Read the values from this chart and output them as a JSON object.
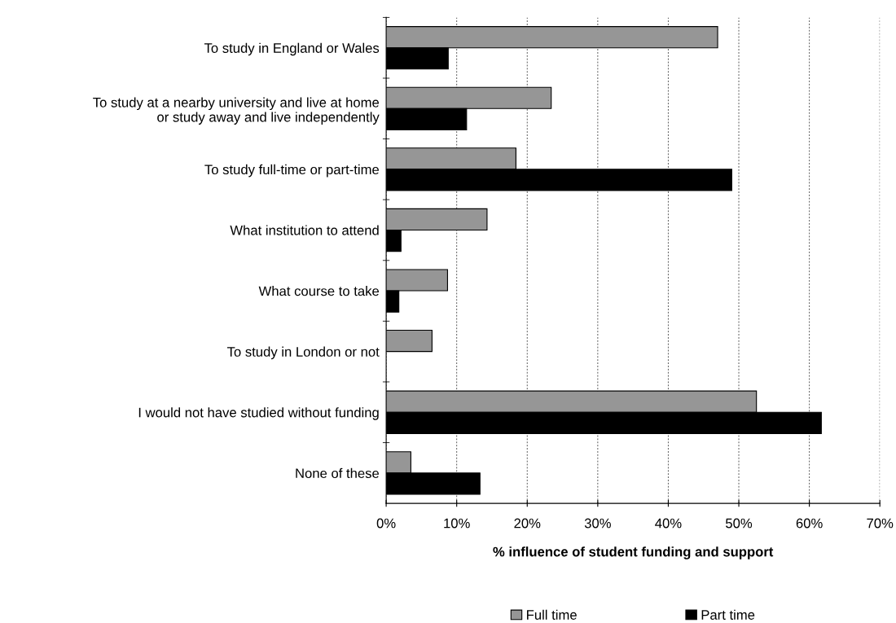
{
  "chart_data": {
    "type": "bar",
    "orientation": "horizontal",
    "xlabel": "% influence of student funding and support",
    "categories": [
      "To study in England or Wales",
      "To study at a nearby university and live at home\nor study away and live independently",
      "To study full-time or part-time",
      "What institution to attend",
      "What course to take",
      "To study in London or not",
      "I would not have studied without funding",
      "None of these"
    ],
    "series": [
      {
        "name": "Full time",
        "color": "#969696",
        "values": [
          47.0,
          23.4,
          18.4,
          14.3,
          8.7,
          6.5,
          52.5,
          3.5
        ]
      },
      {
        "name": "Part time",
        "color": "#000000",
        "values": [
          8.8,
          11.4,
          49.0,
          2.1,
          1.8,
          null,
          61.7,
          13.3
        ]
      }
    ],
    "xlim": [
      0,
      70
    ],
    "xticks": [
      {
        "value": 0,
        "label": "0%"
      },
      {
        "value": 10,
        "label": "10%"
      },
      {
        "value": 20,
        "label": "20%"
      },
      {
        "value": 30,
        "label": "30%"
      },
      {
        "value": 40,
        "label": "40%"
      },
      {
        "value": 50,
        "label": "50%"
      },
      {
        "value": 60,
        "label": "60%"
      },
      {
        "value": 70,
        "label": "70%"
      }
    ],
    "grid": "x",
    "legend": "bottom"
  }
}
